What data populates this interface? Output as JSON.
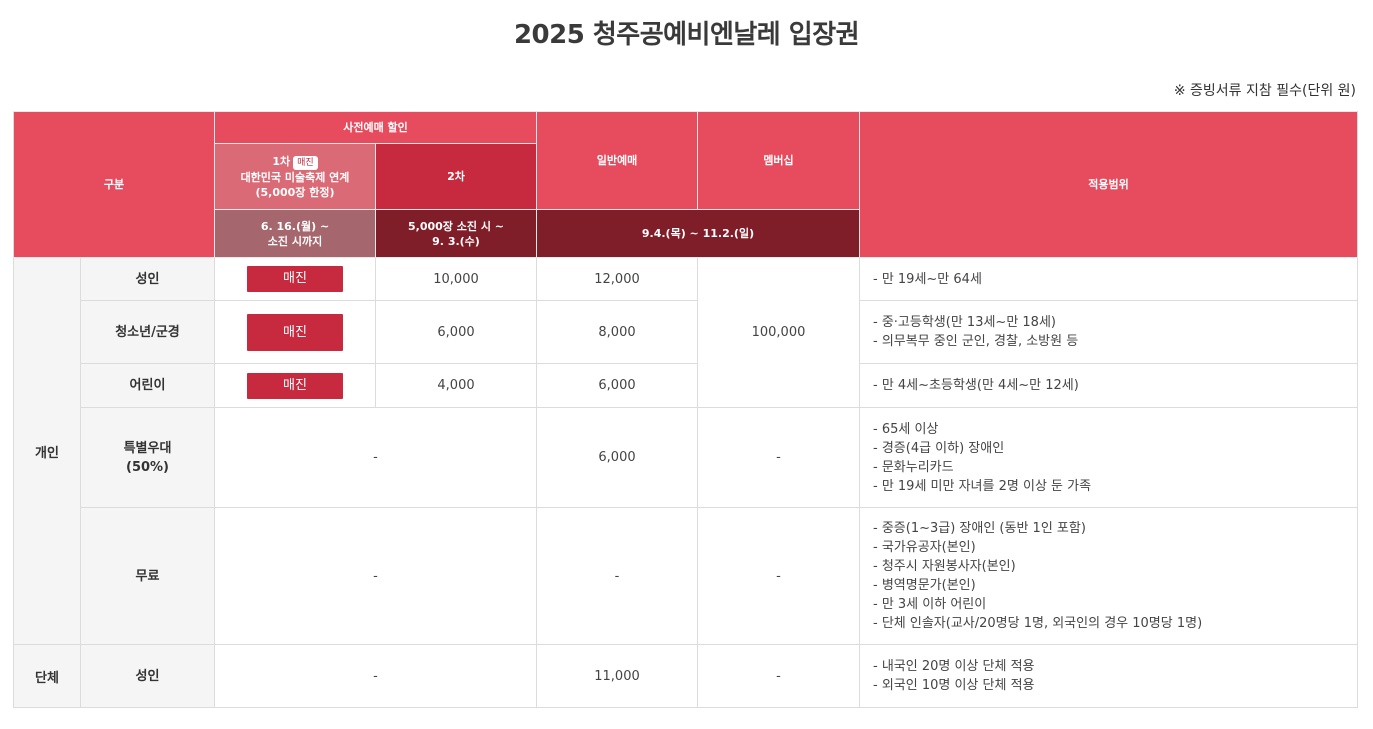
{
  "title": "2025 청주공예비엔날레 입장권",
  "note": "※ 증빙서류 지참 필수(단위 원)",
  "header": {
    "category": "구분",
    "advance_discount": "사전예매 할인",
    "first": "1차",
    "first_badge": "매진",
    "first_desc1": "대한민국 미술축제 연계",
    "first_desc2": "(5,000장 한정)",
    "second": "2차",
    "general": "일반예매",
    "membership": "멤버십",
    "scope": "적용범위",
    "first_period1": "6. 16.(월) ~",
    "first_period2": "소진 시까지",
    "second_period1": "5,000장 소진 시 ~",
    "second_period2": "9. 3.(수)",
    "general_period": "9.4.(목) ~ 11.2.(일)"
  },
  "rows": {
    "individual": "개인",
    "group": "단체",
    "adult": {
      "label": "성인",
      "first": "매진",
      "second": "10,000",
      "general": "12,000",
      "scope": [
        "- 만 19세~만 64세"
      ]
    },
    "youth": {
      "label": "청소년/군경",
      "first": "매진",
      "second": "6,000",
      "general": "8,000",
      "scope": [
        "- 중·고등학생(만 13세~만 18세)",
        "- 의무복무 중인 군인, 경찰, 소방원 등"
      ]
    },
    "child": {
      "label": "어린이",
      "first": "매진",
      "second": "4,000",
      "general": "6,000",
      "scope": [
        "- 만 4세~초등학생(만 4세~만 12세)"
      ]
    },
    "membership_price": "100,000",
    "special": {
      "label1": "특별우대",
      "label2": "(50%)",
      "advance": "-",
      "general": "6,000",
      "membership": "-",
      "scope": [
        "- 65세 이상",
        "- 경증(4급 이하) 장애인",
        "- 문화누리카드",
        "- 만 19세 미만 자녀를 2명 이상 둔 가족"
      ]
    },
    "free": {
      "label": "무료",
      "advance": "-",
      "general": "-",
      "membership": "-",
      "scope": [
        "- 중증(1~3급) 장애인 (동반 1인 포함)",
        "- 국가유공자(본인)",
        "- 청주시 자원봉사자(본인)",
        "- 병역명문가(본인)",
        "- 만 3세 이하 어린이",
        "- 단체 인솔자(교사/20명당 1명, 외국인의 경우 10명당 1명)"
      ]
    },
    "group_adult": {
      "label": "성인",
      "advance": "-",
      "general": "11,000",
      "membership": "-",
      "scope": [
        "- 내국인 20명 이상 단체 적용",
        "- 외국인 10명 이상 단체 적용"
      ]
    }
  }
}
